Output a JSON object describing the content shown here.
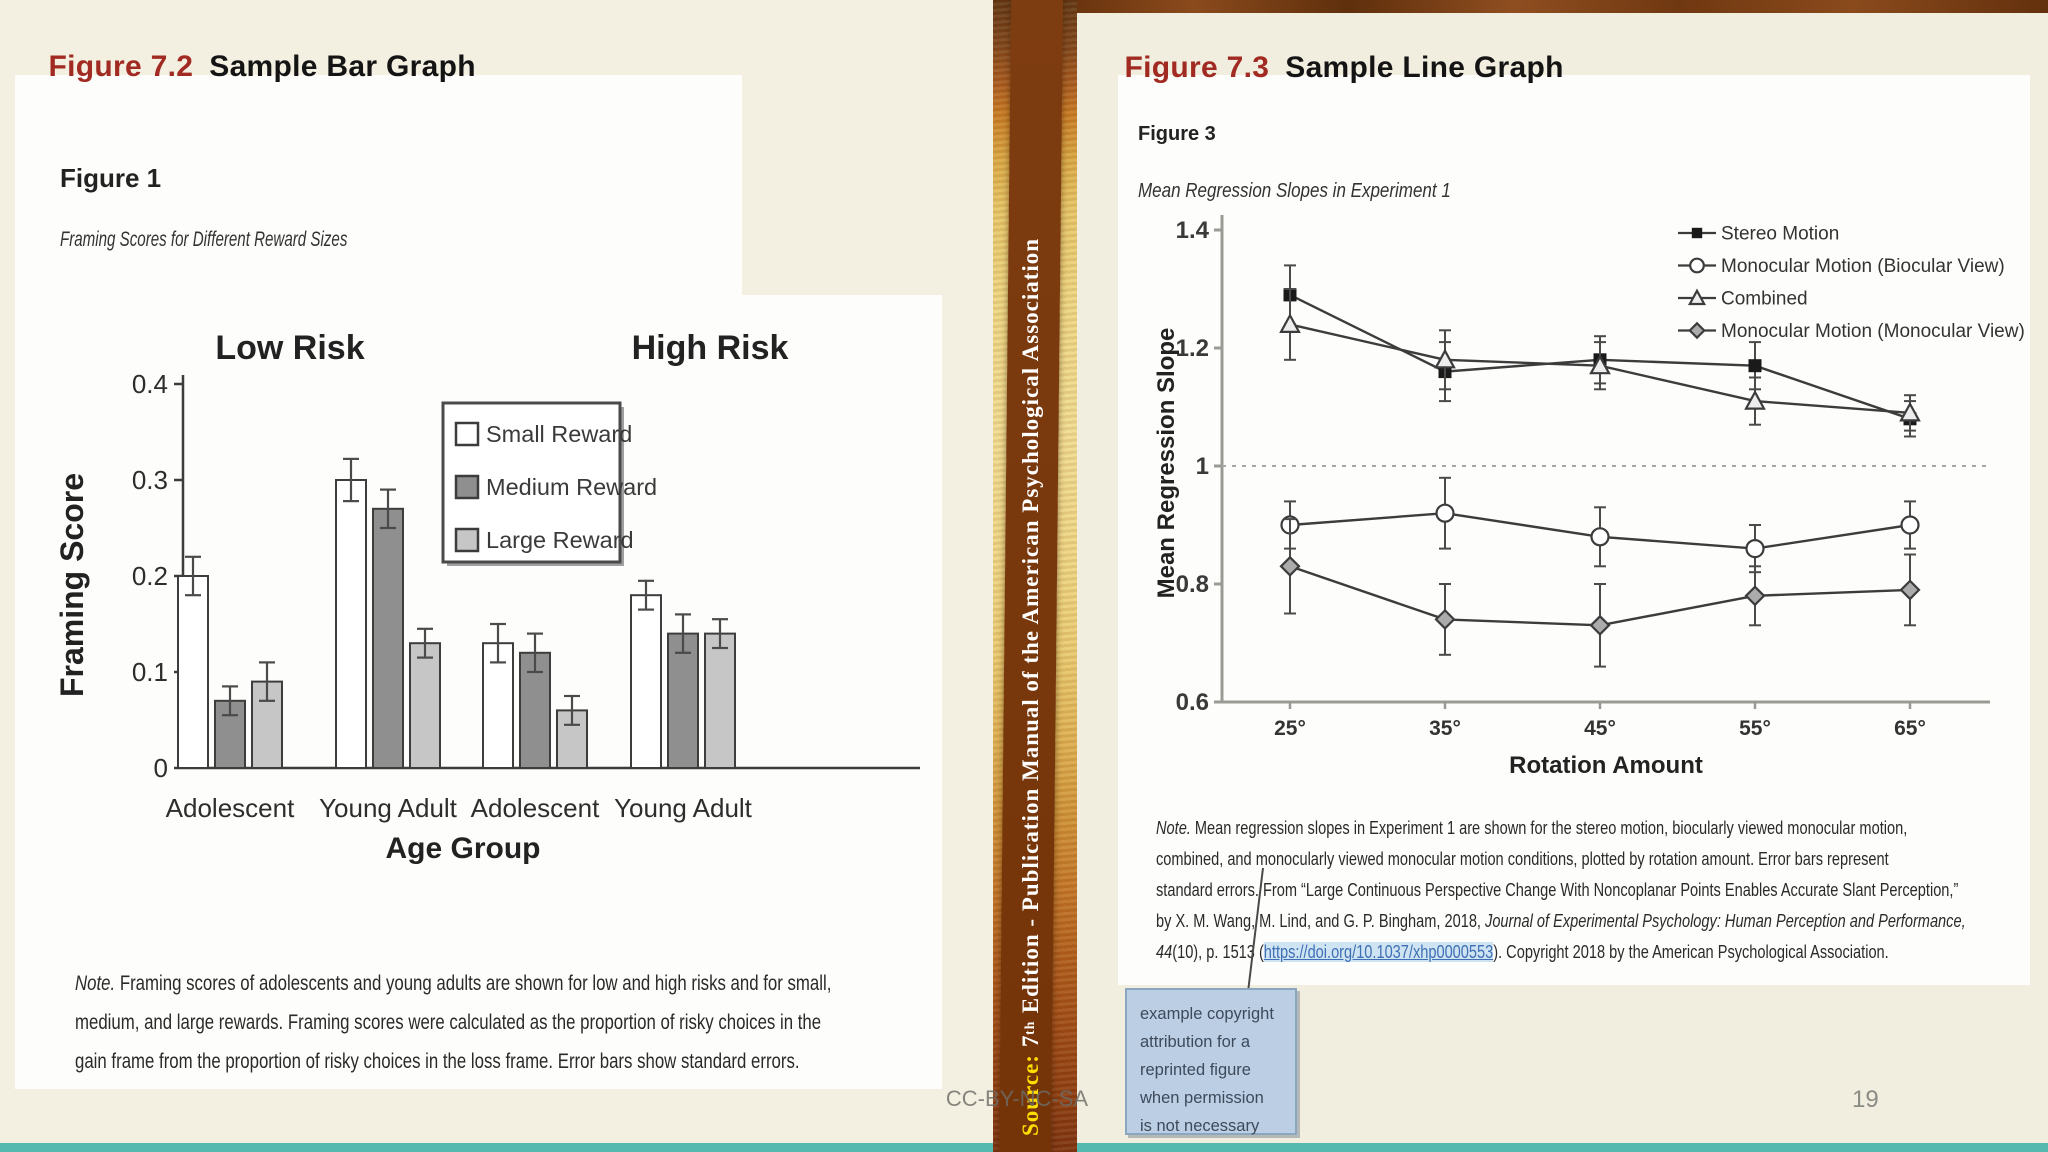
{
  "slide": {
    "footer_license": "CC-BY-NC-SA",
    "page_number": "19",
    "accent_teal": "#56b9b0",
    "title_red": "#a12a22"
  },
  "left_header": {
    "label": "Figure 7.2",
    "title": "Sample Bar Graph"
  },
  "right_header": {
    "label": "Figure 7.3",
    "title": "Sample Line Graph"
  },
  "band": {
    "source_label": "Source: ",
    "edition_base": "7",
    "edition_sup": "th",
    "source_rest": " Edition - Publication Manual of the American Psychological Association"
  },
  "left_figure": {
    "note_lines": [
      [
        {
          "s": "i",
          "t": "Note."
        },
        {
          "s": "n",
          "t": " Framing scores of adolescents and young adults are shown for low and high risks and for small,"
        }
      ],
      [
        {
          "s": "n",
          "t": "medium, and large rewards. Framing scores were calculated as the proportion of risky choices in the"
        }
      ],
      [
        {
          "s": "n",
          "t": "gain frame from the proportion of risky choices in the loss frame. Error bars show standard errors."
        }
      ]
    ]
  },
  "right_figure": {
    "note_lines": [
      [
        {
          "s": "i",
          "t": "Note."
        },
        {
          "s": "n",
          "t": " Mean regression slopes in Experiment 1 are shown for the stereo motion, biocularly viewed monocular motion,"
        }
      ],
      [
        {
          "s": "n",
          "t": "combined, and monocularly viewed monocular motion conditions, plotted by rotation amount. Error bars represent"
        }
      ],
      [
        {
          "s": "n",
          "t": "standard errors. From “Large Continuous Perspective Change With Noncoplanar Points Enables Accurate Slant Perception,”"
        }
      ],
      [
        {
          "s": "n",
          "t": "by X. M. Wang, M. Lind, and G. P. Bingham, 2018, "
        },
        {
          "s": "i",
          "t": "Journal of Experimental Psychology: Human Perception and Performance,"
        }
      ],
      [
        {
          "s": "i",
          "t": "44"
        },
        {
          "s": "n",
          "t": "(10), p. 1513 ("
        },
        {
          "s": "link",
          "t": "https://doi.org/10.1037/xhp0000553"
        },
        {
          "s": "n",
          "t": "). Copyright 2018 by the American Psychological Association."
        }
      ]
    ]
  },
  "callout": {
    "lines": [
      "example copyright",
      "attribution for a",
      "reprinted figure",
      "when permission",
      "is not necessary"
    ]
  },
  "chart_data": [
    {
      "type": "bar",
      "figure_label": "Figure 1",
      "title": "Framing Scores for Different Reward Sizes",
      "group_headers": [
        "Low Risk",
        "High Risk"
      ],
      "categories": [
        "Adolescent",
        "Young Adult",
        "Adolescent",
        "Young Adult"
      ],
      "series": [
        {
          "name": "Small Reward",
          "fill": "#ffffff",
          "values": [
            0.2,
            0.3,
            0.13,
            0.18
          ],
          "errors": [
            0.02,
            0.022,
            0.02,
            0.015
          ]
        },
        {
          "name": "Medium Reward",
          "fill": "#8f8f8f",
          "values": [
            0.07,
            0.27,
            0.12,
            0.14
          ],
          "errors": [
            0.015,
            0.02,
            0.02,
            0.02
          ]
        },
        {
          "name": "Large Reward",
          "fill": "#c6c6c6",
          "values": [
            0.09,
            0.13,
            0.06,
            0.14
          ],
          "errors": [
            0.02,
            0.015,
            0.015,
            0.015
          ]
        }
      ],
      "xlabel": "Age Group",
      "ylabel": "Framing Score",
      "ylim": [
        0,
        0.4
      ],
      "yticks": [
        0,
        0.1,
        0.2,
        0.3,
        0.4
      ],
      "legend_position": "upper-right"
    },
    {
      "type": "line",
      "figure_label": "Figure 3",
      "title": "Mean Regression Slopes in Experiment 1",
      "x_categories": [
        "25°",
        "35°",
        "45°",
        "55°",
        "65°"
      ],
      "series": [
        {
          "name": "Stereo Motion",
          "marker": "square-filled",
          "values": [
            1.29,
            1.16,
            1.18,
            1.17,
            1.08
          ],
          "errors": [
            0.05,
            0.05,
            0.04,
            0.04,
            0.03
          ]
        },
        {
          "name": "Monocular Motion (Biocular View)",
          "marker": "circle-open",
          "values": [
            0.9,
            0.92,
            0.88,
            0.86,
            0.9
          ],
          "errors": [
            0.04,
            0.06,
            0.05,
            0.04,
            0.04
          ]
        },
        {
          "name": "Combined",
          "marker": "triangle-open",
          "values": [
            1.24,
            1.18,
            1.17,
            1.11,
            1.09
          ],
          "errors": [
            0.06,
            0.05,
            0.04,
            0.04,
            0.03
          ]
        },
        {
          "name": "Monocular Motion (Monocular View)",
          "marker": "diamond-gray",
          "values": [
            0.83,
            0.74,
            0.73,
            0.78,
            0.79
          ],
          "errors": [
            0.08,
            0.06,
            0.07,
            0.05,
            0.06
          ]
        }
      ],
      "xlabel": "Rotation Amount",
      "ylabel": "Mean Regression Slope",
      "ylim": [
        0.6,
        1.4
      ],
      "yticks": [
        0.6,
        0.8,
        1.0,
        1.2,
        1.4
      ],
      "reference_line": 1.0,
      "legend_position": "top-right",
      "grid": false
    }
  ]
}
